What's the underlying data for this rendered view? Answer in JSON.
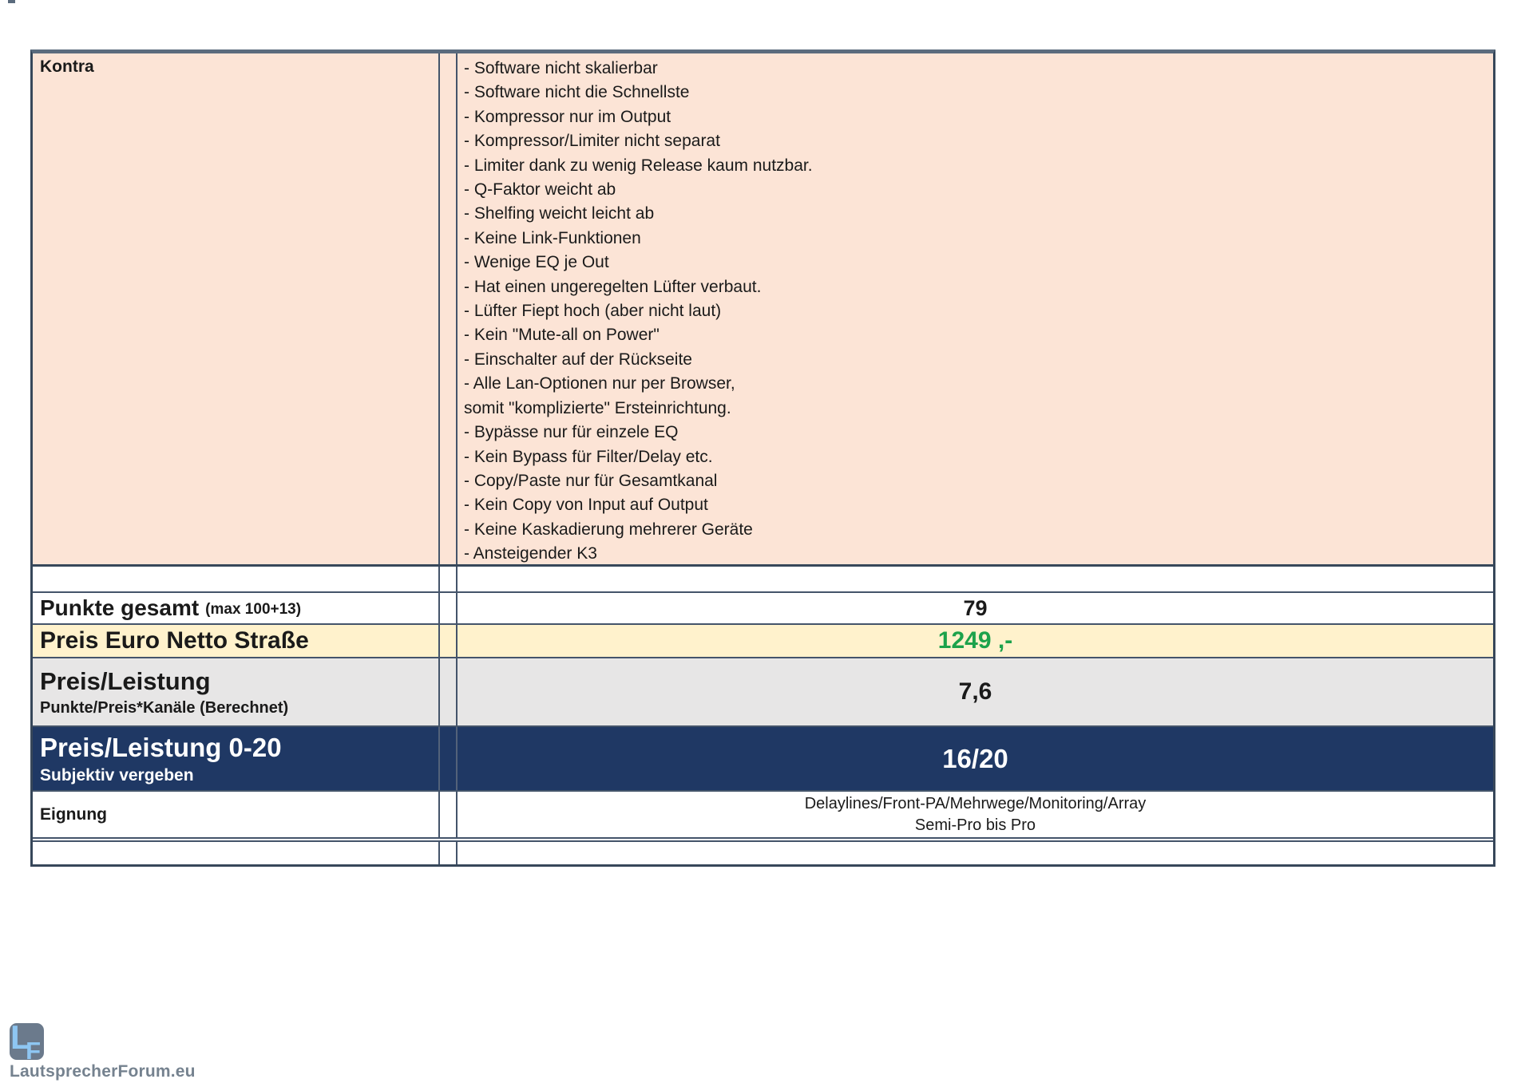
{
  "kontra": {
    "label": "Kontra",
    "items": [
      "- Software nicht skalierbar",
      "- Software nicht die Schnellste",
      "- Kompressor nur im Output",
      "- Kompressor/Limiter nicht separat",
      "- Limiter dank zu wenig Release kaum nutzbar.",
      "- Q-Faktor weicht ab",
      "- Shelfing weicht leicht ab",
      "- Keine Link-Funktionen",
      "- Wenige EQ je Out",
      "- Hat einen ungeregelten Lüfter verbaut.",
      "- Lüfter Fiept hoch (aber nicht laut)",
      "- Kein \"Mute-all on Power\"",
      "- Einschalter auf der Rückseite",
      "- Alle Lan-Optionen nur per Browser,",
      "somit \"komplizierte\" Ersteinrichtung.",
      "- Bypässe nur für einzele EQ",
      "- Kein Bypass für Filter/Delay etc.",
      "- Copy/Paste nur für Gesamtkanal",
      "- Kein Copy von Input auf Output",
      "- Keine Kaskadierung mehrerer Geräte",
      "- Ansteigender K3"
    ]
  },
  "rows": {
    "punkte_gesamt": {
      "label": "Punkte gesamt",
      "label_note": "(max 100+13)",
      "value": "79"
    },
    "preis_euro": {
      "label": "Preis Euro Netto Straße",
      "value": "1249 ,-"
    },
    "preis_leistung": {
      "label": "Preis/Leistung",
      "sublabel": "Punkte/Preis*Kanäle (Berechnet)",
      "value": "7,6"
    },
    "preis_leistung_0_20": {
      "label": "Preis/Leistung 0-20",
      "sublabel": "Subjektiv vergeben",
      "value": "16/20"
    },
    "eignung": {
      "label": "Eignung",
      "value_lines": [
        "Delaylines/Front-PA/Mehrwege/Monitoring/Array",
        "Semi-Pro bis Pro"
      ]
    }
  },
  "footer": {
    "logo_l": "L",
    "logo_f": "F",
    "logo_text": "LautsprecherForum.eu"
  },
  "colors": {
    "kontra_bg": "#FCE4D6",
    "preis_row_bg": "#FFF2CC",
    "preis_leistung_row_bg": "#E7E6E6",
    "preis_leistung_0_20_row_bg": "#1F3864",
    "price_value_green": "#1CA24B",
    "border": "#44546A",
    "logo_badge": "#6B7A8C",
    "logo_letters": "#8EC6F2",
    "logo_text_color": "#75828F"
  }
}
